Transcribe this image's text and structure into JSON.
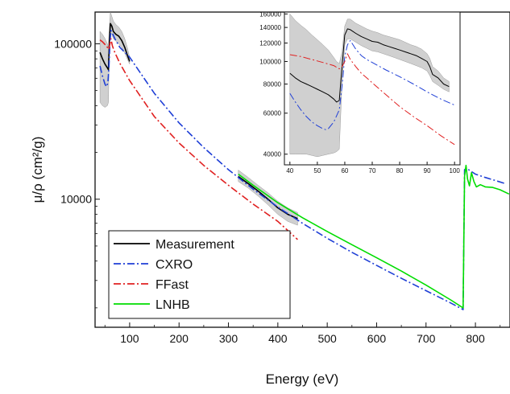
{
  "chart_data": [
    {
      "type": "line",
      "title": "",
      "xlabel": "Energy (eV)",
      "ylabel": "μ/ρ (cm²/g)",
      "xlim": [
        30,
        870
      ],
      "ylim": [
        1500,
        160000
      ],
      "yscale": "log",
      "x_ticks": [
        100,
        200,
        300,
        400,
        500,
        600,
        700,
        800
      ],
      "y_ticks": [
        10000,
        100000
      ],
      "y_tick_labels": [
        "10000",
        "100000"
      ],
      "grid": false,
      "legend": "bottom-left",
      "series": [
        {
          "name": "Measurement",
          "color": "#000000",
          "style": "solid",
          "band_color": "#c8c8c8",
          "segments": [
            {
              "x": [
                40,
                45,
                50,
                55,
                57,
                59,
                61,
                64,
                67,
                72,
                78,
                84,
                90,
                95,
                100
              ],
              "y": [
                88000,
                80000,
                74000,
                70000,
                68000,
                105000,
                135000,
                130000,
                120000,
                115000,
                112000,
                105000,
                95000,
                85000,
                77000
              ],
              "lower": [
                42000,
                40000,
                39000,
                40000,
                42000,
                95000,
                118000,
                115000,
                108000,
                104000,
                100000,
                95000,
                87000,
                80000,
                74000
              ],
              "upper": [
                120000,
                115000,
                108000,
                100000,
                95000,
                130000,
                160000,
                150000,
                140000,
                133000,
                128000,
                120000,
                108000,
                95000,
                82000
              ]
            },
            {
              "x": [
                320,
                340,
                360,
                380,
                400,
                420,
                440
              ],
              "y": [
                14000,
                12600,
                11300,
                10000,
                8800,
                8000,
                7500
              ],
              "lower": [
                13000,
                11800,
                10500,
                9200,
                8000,
                7200,
                6800
              ],
              "upper": [
                15400,
                13800,
                12300,
                11000,
                9700,
                8800,
                8200
              ]
            }
          ]
        },
        {
          "name": "CXRO",
          "color": "#1f3fd6",
          "style": "dashdot",
          "x": [
            40,
            45,
            50,
            53,
            56,
            58,
            60,
            62,
            65,
            70,
            80,
            100,
            150,
            200,
            250,
            300,
            350,
            400,
            450,
            500,
            550,
            600,
            650,
            700,
            750,
            775,
            778,
            782,
            790,
            800,
            820,
            840,
            860
          ],
          "y": [
            72000,
            62000,
            55000,
            53000,
            56000,
            70000,
            100000,
            122000,
            117000,
            108000,
            95000,
            82000,
            48000,
            31000,
            21500,
            15500,
            11600,
            8900,
            7000,
            5600,
            4550,
            3750,
            3100,
            2580,
            2150,
            1950,
            15500,
            15800,
            15200,
            14500,
            13800,
            13200,
            12600
          ]
        },
        {
          "name": "FFast",
          "color": "#e02020",
          "style": "dashdot",
          "x": [
            40,
            45,
            50,
            55,
            58,
            60,
            62,
            65,
            70,
            80,
            100,
            150,
            200,
            250,
            300,
            350,
            400,
            440
          ],
          "y": [
            106000,
            103000,
            99000,
            95000,
            92000,
            100000,
            108000,
            97000,
            88000,
            75000,
            58000,
            34000,
            23000,
            16500,
            12300,
            9300,
            7200,
            5500
          ]
        },
        {
          "name": "LNHB",
          "color": "#00dd00",
          "style": "solid",
          "x": [
            320,
            350,
            400,
            450,
            500,
            550,
            600,
            650,
            700,
            750,
            775,
            778,
            781,
            784,
            788,
            792,
            797,
            802,
            810,
            820,
            835,
            850,
            868
          ],
          "y": [
            14500,
            12300,
            9500,
            7600,
            6200,
            5100,
            4200,
            3450,
            2800,
            2250,
            2000,
            14000,
            16500,
            13500,
            12200,
            14800,
            13000,
            12000,
            12400,
            12000,
            11900,
            11500,
            10800
          ]
        }
      ]
    },
    {
      "type": "line",
      "title": "",
      "xlabel": "",
      "ylabel": "",
      "xlim": [
        38,
        102
      ],
      "ylim": [
        36000,
        163000
      ],
      "yscale": "log",
      "x_ticks": [
        40,
        50,
        60,
        70,
        80,
        90,
        100
      ],
      "y_ticks": [
        40000,
        60000,
        80000,
        100000,
        120000,
        140000,
        160000
      ],
      "y_tick_labels": [
        "40000",
        "60000",
        "80000",
        "100000",
        "120000",
        "140000",
        "160000"
      ],
      "series": [
        {
          "color": "#000000",
          "style": "solid",
          "band_color": "#c8c8c8",
          "x": [
            40,
            42,
            44,
            46,
            48,
            50,
            52,
            54,
            56,
            57,
            58,
            59,
            60,
            61,
            62,
            64,
            66,
            68,
            70,
            72,
            74,
            76,
            78,
            80,
            82,
            84,
            86,
            88,
            90,
            91,
            92,
            94,
            96,
            98
          ],
          "y": [
            89000,
            85000,
            82000,
            80000,
            78000,
            76000,
            74000,
            72000,
            69000,
            67000,
            68000,
            95000,
            130000,
            138000,
            137000,
            132000,
            128000,
            125000,
            122000,
            121000,
            118000,
            116000,
            114000,
            112000,
            110000,
            108000,
            106000,
            103000,
            100000,
            95000,
            88000,
            85000,
            80000,
            78000
          ],
          "lower": [
            40000,
            40000,
            40000,
            40000,
            39500,
            39000,
            39500,
            40000,
            40500,
            41000,
            42000,
            80000,
            118000,
            125000,
            125000,
            121000,
            117000,
            114000,
            111000,
            110000,
            108000,
            106000,
            104000,
            102000,
            100000,
            98000,
            96000,
            94000,
            91000,
            87000,
            82000,
            79000,
            76000,
            74000
          ],
          "upper": [
            160000,
            150000,
            143000,
            137000,
            130000,
            124000,
            118000,
            112000,
            104000,
            100000,
            98000,
            110000,
            142000,
            152000,
            152000,
            146000,
            142000,
            138000,
            135000,
            133000,
            130000,
            128000,
            126000,
            124000,
            121000,
            118000,
            116000,
            113000,
            108000,
            103000,
            95000,
            91000,
            85000,
            82000
          ]
        },
        {
          "color": "#1f3fd6",
          "style": "dashdot",
          "x": [
            40,
            42,
            44,
            46,
            48,
            50,
            52,
            53,
            54,
            56,
            58,
            59,
            60,
            61,
            62,
            64,
            66,
            68,
            70,
            75,
            80,
            85,
            90,
            95,
            100
          ],
          "y": [
            73000,
            67000,
            62000,
            58000,
            55000,
            53000,
            51500,
            51000,
            51500,
            55000,
            62000,
            78000,
            105000,
            118000,
            123000,
            113000,
            106000,
            102000,
            99000,
            92000,
            86000,
            80000,
            74000,
            69000,
            65000
          ]
        },
        {
          "color": "#e02020",
          "style": "dashdot",
          "x": [
            40,
            44,
            48,
            52,
            56,
            58,
            59,
            60,
            61,
            62,
            64,
            66,
            68,
            70,
            75,
            80,
            85,
            90,
            95,
            100
          ],
          "y": [
            107000,
            105000,
            102000,
            99000,
            96000,
            93000,
            95000,
            100000,
            108000,
            102000,
            95000,
            89000,
            85000,
            81000,
            72000,
            64000,
            58000,
            53000,
            48000,
            44000
          ]
        }
      ]
    }
  ]
}
